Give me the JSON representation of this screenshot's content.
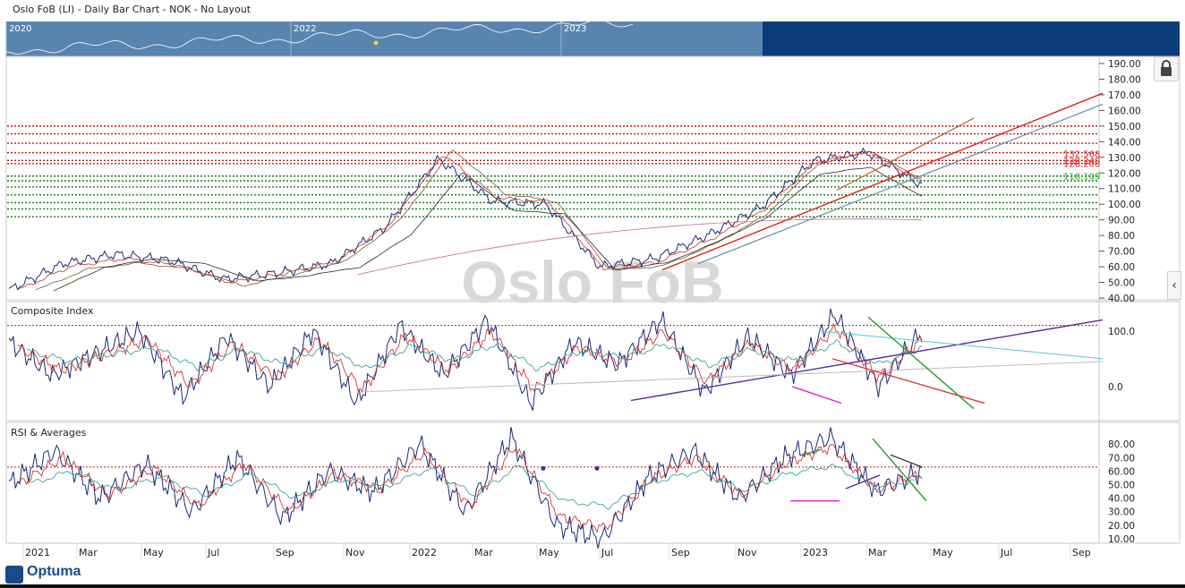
{
  "header": {
    "title": "Oslo FoB (LI) - Daily Bar Chart - NOK - No Layout"
  },
  "navigator": {
    "years": [
      "2020",
      "2022",
      "2023"
    ]
  },
  "watermark": "Oslo FoB",
  "panes": {
    "main": {
      "label": ""
    },
    "composite": {
      "label": "Composite Index"
    },
    "rsi": {
      "label": "RSI & Averages"
    }
  },
  "logo": {
    "text": "Optuma"
  },
  "icons": {
    "lock": "lock-icon",
    "collapse": "chevron-left-icon"
  },
  "chart_data": [
    {
      "type": "line",
      "title": "",
      "xlabel": "",
      "ylabel": "",
      "ylim": [
        40,
        195
      ],
      "yticks": [
        "190.00",
        "180.00",
        "170.00",
        "160.00",
        "150.00",
        "140.00",
        "130.00",
        "120.00",
        "110.00",
        "100.00",
        "90.00",
        "80.00",
        "70.00",
        "60.00",
        "50.00",
        "40.00"
      ],
      "x_ticks": [
        "2021",
        "Mar",
        "May",
        "Jul",
        "Sep",
        "Nov",
        "2022",
        "Mar",
        "May",
        "Jul",
        "Sep",
        "Nov",
        "2023",
        "Mar",
        "May",
        "Jul",
        "Sep"
      ],
      "x": [
        "2021-01",
        "2021-03",
        "2021-05",
        "2021-07",
        "2021-09",
        "2021-11",
        "2022-01",
        "2022-03",
        "2022-04",
        "2022-05",
        "2022-07",
        "2022-08",
        "2022-09",
        "2022-11",
        "2023-01",
        "2023-02",
        "2023-03",
        "2023-04"
      ],
      "series": [
        {
          "values": [
            45,
            62,
            68,
            64,
            52,
            56,
            62,
            85,
            129,
            102,
            100,
            60,
            65,
            80,
            98,
            128,
            133,
            112
          ]
        }
      ],
      "level_labels": [
        {
          "text": "132.568",
          "value": 132.568,
          "color": "#e02020"
        },
        {
          "text": "128.240",
          "value": 128.24,
          "color": "#e02020"
        },
        {
          "text": "126.200",
          "value": 126.2,
          "color": "#e02020"
        },
        {
          "text": "118.109",
          "value": 118.109,
          "color": "#2a9a2a"
        }
      ],
      "resistance_levels": [
        150,
        145,
        139,
        133,
        128,
        126
      ],
      "support_levels": [
        118,
        115,
        111,
        106,
        101,
        97,
        92
      ],
      "grid": false,
      "colors": {
        "price": "#1a2a7a",
        "resistance": "#c01818",
        "support": "#1a7a1a"
      }
    },
    {
      "type": "line",
      "title": "Composite Index",
      "yticks": [
        "100.0",
        "0.0"
      ],
      "ylim": [
        -55,
        140
      ],
      "series": [
        {
          "values": [
            80,
            20,
            60,
            100,
            -20,
            90,
            0,
            100,
            -30,
            110,
            20,
            120,
            -30,
            80,
            40,
            120,
            -10,
            90,
            20,
            130,
            0,
            100
          ]
        }
      ],
      "ref_level": 110,
      "colors": {
        "line": "#1a2a7a",
        "ref": "#c01818"
      }
    },
    {
      "type": "line",
      "title": "RSI & Averages",
      "yticks": [
        "80.00",
        "70.00",
        "60.00",
        "50.00",
        "40.00",
        "30.00",
        "20.00",
        "10.00"
      ],
      "ylim": [
        8,
        92
      ],
      "series": [
        {
          "values": [
            50,
            75,
            40,
            65,
            30,
            70,
            25,
            60,
            45,
            80,
            30,
            85,
            20,
            10,
            55,
            75,
            40,
            70,
            85,
            45,
            60
          ]
        }
      ],
      "ref_level": 63,
      "colors": {
        "line": "#1a2a7a",
        "ref": "#c01818"
      }
    }
  ]
}
